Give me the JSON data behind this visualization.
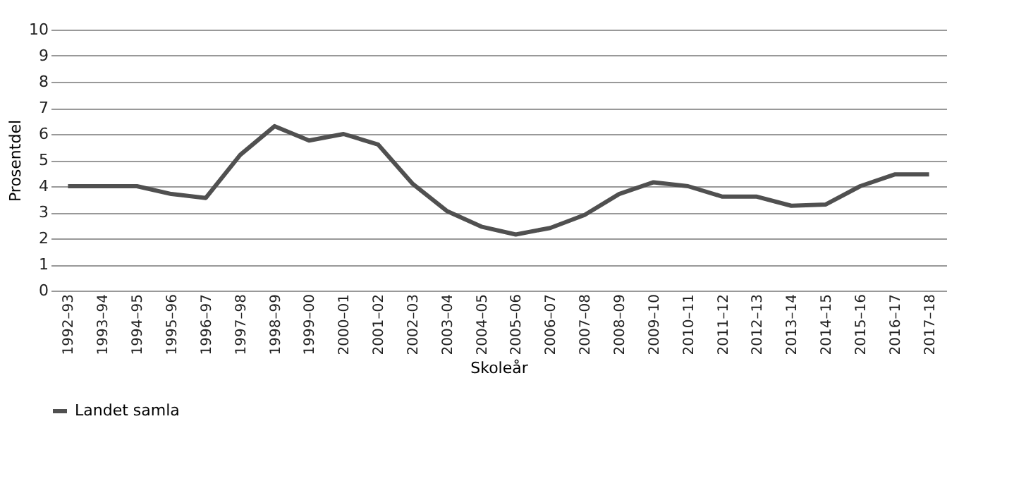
{
  "chart_data": {
    "type": "line",
    "xlabel": "Skoleår",
    "ylabel": "Prosentdel",
    "categories": [
      "1992–93",
      "1993–94",
      "1994–95",
      "1995–96",
      "1996–97",
      "1997–98",
      "1998–99",
      "1999–00",
      "2000–01",
      "2001–02",
      "2002–03",
      "2003–04",
      "2004–05",
      "2005–06",
      "2006–07",
      "2007–08",
      "2008–09",
      "2009–10",
      "2010–11",
      "2011–12",
      "2012–13",
      "2013–14",
      "2014–15",
      "2015–16",
      "2016–17",
      "2017–18"
    ],
    "series": [
      {
        "name": "Landet samla",
        "color": "#505050",
        "values": [
          4.0,
          4.0,
          4.0,
          3.7,
          3.55,
          5.2,
          6.3,
          5.75,
          6.0,
          5.6,
          4.1,
          3.05,
          2.45,
          2.15,
          2.4,
          2.9,
          3.7,
          4.15,
          4.0,
          3.6,
          3.6,
          3.25,
          3.3,
          4.0,
          4.45,
          4.45
        ]
      }
    ],
    "ylim": [
      0,
      10
    ],
    "yticks": [
      0,
      1,
      2,
      3,
      4,
      5,
      6,
      7,
      8,
      9,
      10
    ],
    "grid": "y",
    "legend": "bottom",
    "marker": "none",
    "line_style": "solid"
  }
}
